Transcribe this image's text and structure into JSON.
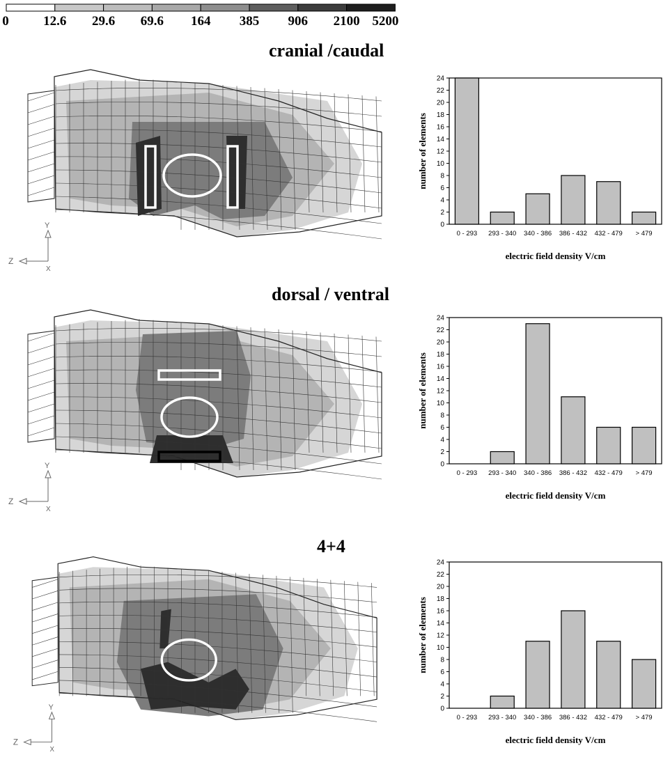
{
  "scale": {
    "labels": [
      "0",
      "12.6",
      "29.6",
      "69.6",
      "164",
      "385",
      "906",
      "2100",
      "5200"
    ],
    "colors": [
      "#ffffff",
      "#ffffff",
      "#c8c8c8",
      "#bcbcbc",
      "#a8a8a8",
      "#8e8e8e",
      "#5e5e5e",
      "#3c3c3c",
      "#1e1e1e"
    ]
  },
  "panels": [
    {
      "title": "cranial /caudal",
      "axes": {
        "y": "Y",
        "z": "Z",
        "x": "X"
      }
    },
    {
      "title": "dorsal / ventral",
      "axes": {
        "y": "Y",
        "z": "Z",
        "x": "X"
      }
    },
    {
      "title": "4+4",
      "axes": {
        "y": "Y",
        "z": "Z",
        "x": "X"
      }
    }
  ],
  "chart_data": [
    {
      "type": "bar",
      "categories": [
        "0 - 293",
        "293 - 340",
        "340 - 386",
        "386 - 432",
        "432 - 479",
        "> 479"
      ],
      "values": [
        24,
        2,
        5,
        8,
        7,
        2
      ],
      "xlabel": "electric field density V/cm",
      "ylabel": "number of elements",
      "ylim": [
        0,
        24
      ],
      "yticks": [
        0,
        2,
        4,
        6,
        8,
        10,
        12,
        14,
        16,
        18,
        20,
        22,
        24
      ],
      "bar_color": "#c0c0c0"
    },
    {
      "type": "bar",
      "categories": [
        "0 - 293",
        "293 - 340",
        "340 - 386",
        "386 - 432",
        "432 - 479",
        "> 479"
      ],
      "values": [
        0,
        2,
        23,
        11,
        6,
        6
      ],
      "xlabel": "electric field density V/cm",
      "ylabel": "number of elements",
      "ylim": [
        0,
        24
      ],
      "yticks": [
        0,
        2,
        4,
        6,
        8,
        10,
        12,
        14,
        16,
        18,
        20,
        22,
        24
      ],
      "bar_color": "#c0c0c0"
    },
    {
      "type": "bar",
      "categories": [
        "0 - 293",
        "293 - 340",
        "340 - 386",
        "386 - 432",
        "432 - 479",
        "> 479"
      ],
      "values": [
        0,
        2,
        11,
        16,
        11,
        8
      ],
      "xlabel": "electric field density V/cm",
      "ylabel": "number of elements",
      "ylim": [
        0,
        24
      ],
      "yticks": [
        0,
        2,
        4,
        6,
        8,
        10,
        12,
        14,
        16,
        18,
        20,
        22,
        24
      ],
      "bar_color": "#c0c0c0"
    }
  ]
}
